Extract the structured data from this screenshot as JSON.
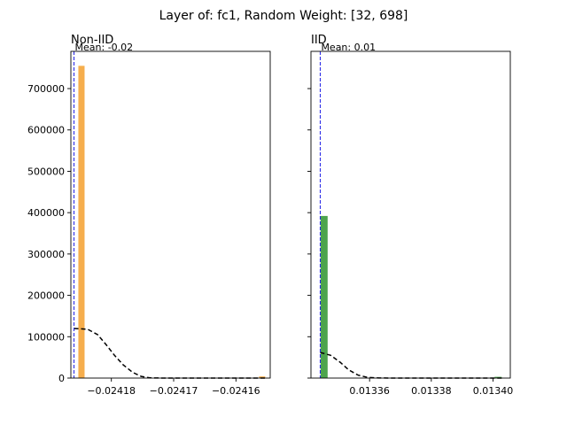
{
  "chart_data": {
    "suptitle": "Layer of: fc1, Random Weight: [32, 698]",
    "type": "histogram",
    "sharey": true,
    "ylim": [
      0,
      790000
    ],
    "yticks": [
      {
        "value": 0,
        "label": "0"
      },
      {
        "value": 100000,
        "label": "100000"
      },
      {
        "value": 200000,
        "label": "200000"
      },
      {
        "value": 300000,
        "label": "300000"
      },
      {
        "value": 400000,
        "label": "400000"
      },
      {
        "value": 500000,
        "label": "500000"
      },
      {
        "value": 600000,
        "label": "600000"
      },
      {
        "value": 700000,
        "label": "700000"
      }
    ],
    "panels": [
      {
        "title": "Non-IID",
        "bar_color": "#f5a53a",
        "mean_label": "Mean: -0.02",
        "mean_x": -0.024186,
        "xlim": [
          -0.0241865,
          -0.0241545
        ],
        "xticks": [
          {
            "value": -0.02418,
            "label": "−0.02418"
          },
          {
            "value": -0.02417,
            "label": "−0.02417"
          },
          {
            "value": -0.02416,
            "label": "−0.02416"
          }
        ],
        "bins": [
          {
            "x0": -0.0241853,
            "x1": -0.0241843,
            "count": 755000
          },
          {
            "x0": -0.0241563,
            "x1": -0.0241553,
            "count": 4000
          }
        ],
        "kde": [
          [
            -0.024186,
            120000
          ],
          [
            -0.0241838,
            118000
          ],
          [
            -0.0241822,
            105000
          ],
          [
            -0.0241808,
            80000
          ],
          [
            -0.0241795,
            55000
          ],
          [
            -0.0241781,
            32000
          ],
          [
            -0.0241766,
            14000
          ],
          [
            -0.0241752,
            4000
          ],
          [
            -0.0241738,
            600
          ],
          [
            -0.024172,
            0
          ],
          [
            -0.02416,
            0
          ],
          [
            -0.0241553,
            0
          ]
        ]
      },
      {
        "title": "IID",
        "bar_color": "#3a9a3a",
        "mean_label": "Mean: 0.01",
        "mean_x": 0.013344,
        "xlim": [
          0.013341,
          0.0134056
        ],
        "xticks": [
          {
            "value": 0.01336,
            "label": "0.01336"
          },
          {
            "value": 0.01338,
            "label": "0.01338"
          },
          {
            "value": 0.0134,
            "label": "0.01340"
          }
        ],
        "bins": [
          {
            "x0": 0.0133441,
            "x1": 0.0133464,
            "count": 392000
          },
          {
            "x0": 0.0134005,
            "x1": 0.0134028,
            "count": 3000
          }
        ],
        "kde": [
          [
            0.013344,
            62000
          ],
          [
            0.0133474,
            55000
          ],
          [
            0.0133505,
            38000
          ],
          [
            0.0133532,
            20000
          ],
          [
            0.0133563,
            7000
          ],
          [
            0.0133595,
            1500
          ],
          [
            0.013363,
            200
          ],
          [
            0.01337,
            0
          ],
          [
            0.013403,
            0
          ]
        ]
      }
    ]
  }
}
